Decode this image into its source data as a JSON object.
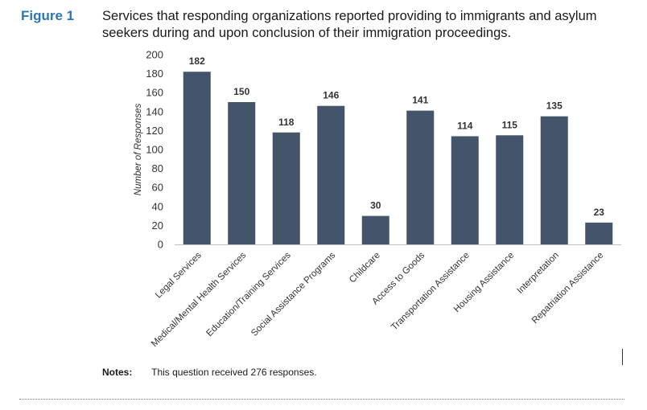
{
  "figure": {
    "label": "Figure 1",
    "title": "Services that responding organizations reported providing to immigrants and asylum seekers during and upon conclusion of their immigration proceedings."
  },
  "notes": {
    "label": "Notes:",
    "text": "This question received 276 responses."
  },
  "chart_data": {
    "type": "bar",
    "title": "Services that responding organizations reported providing to immigrants and asylum seekers during and upon conclusion of their immigration proceedings.",
    "xlabel": "",
    "ylabel": "Number of Responses",
    "ylim": [
      0,
      200
    ],
    "yticks": [
      0,
      20,
      40,
      60,
      80,
      100,
      120,
      140,
      160,
      180,
      200
    ],
    "grid": false,
    "legend": "none",
    "bar_color": "#44546a",
    "categories": [
      "Legal Services",
      "Medical/Mental Health Services",
      "Education/Training Services",
      "Social Assistance Programs",
      "Childcare",
      "Access to Goods",
      "Transportation Assistance",
      "Housing Assistance",
      "Interpretation",
      "Repatriation Assistance"
    ],
    "values": [
      182,
      150,
      118,
      146,
      30,
      141,
      114,
      115,
      135,
      23
    ]
  }
}
